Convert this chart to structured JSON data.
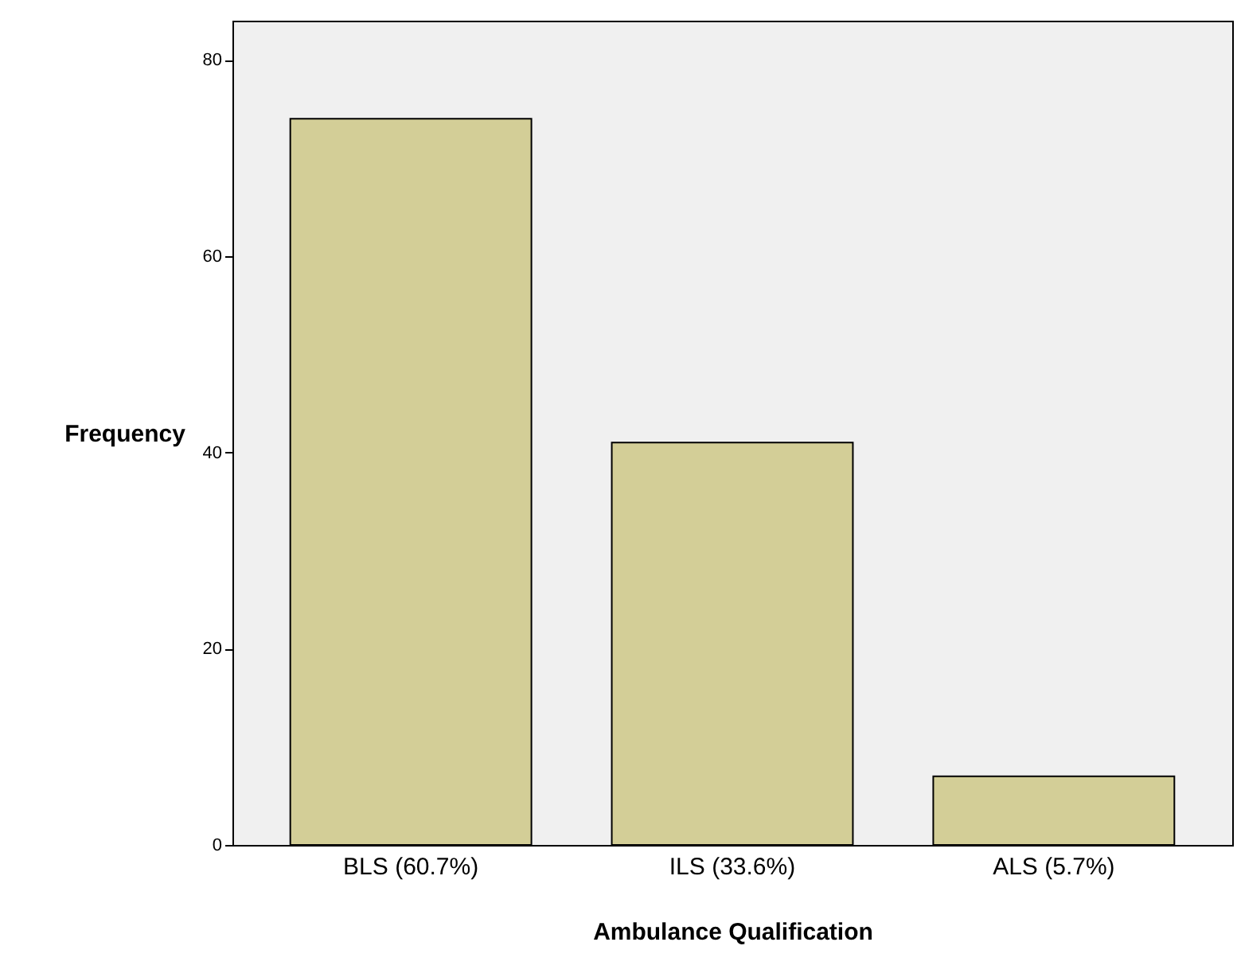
{
  "chart_data": {
    "type": "bar",
    "xlabel": "Ambulance Qualification",
    "ylabel": "Frequency",
    "categories": [
      "BLS (60.7%)",
      "ILS (33.6%)",
      "ALS (5.7%)"
    ],
    "values": [
      74,
      41,
      7
    ],
    "color": "#d3ce97",
    "ylim": [
      0,
      84
    ],
    "yticks": [
      0,
      20,
      40,
      60,
      80
    ],
    "grid": false
  }
}
